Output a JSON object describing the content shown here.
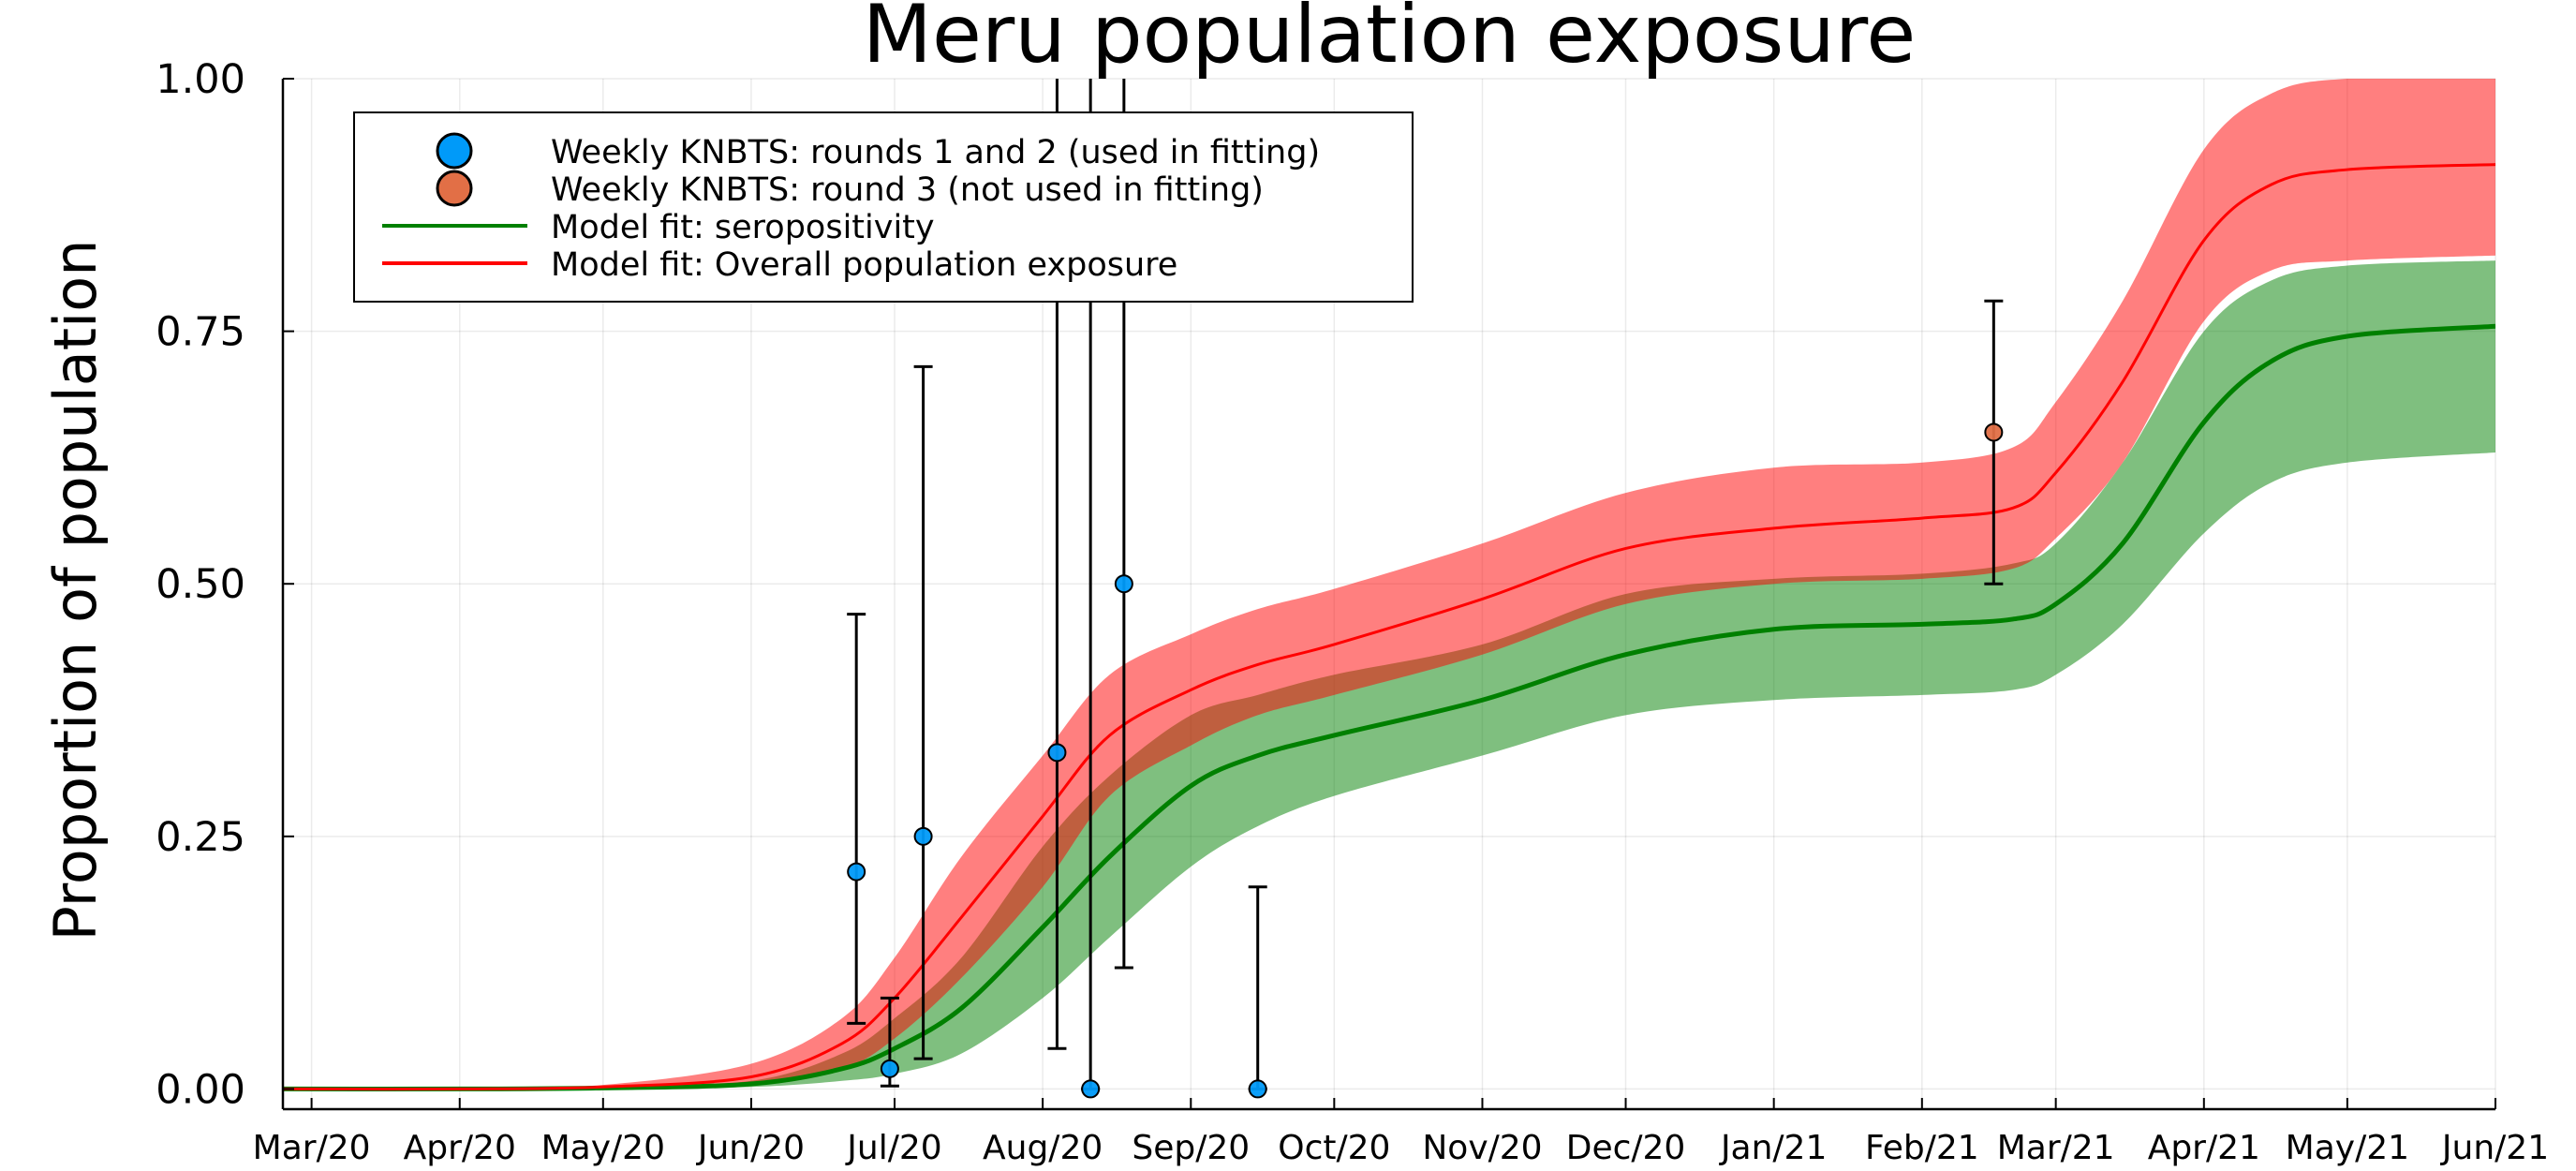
{
  "chart_data": {
    "type": "line",
    "title": "Meru population exposure",
    "xlabel": "",
    "ylabel": "Proportion of population",
    "xlim": [
      "2020-02-24",
      "2021-06-01"
    ],
    "ylim": [
      -0.02,
      1.0
    ],
    "x_ticks": [
      {
        "date": "2020-03-01",
        "label": "Mar/20"
      },
      {
        "date": "2020-04-01",
        "label": "Apr/20"
      },
      {
        "date": "2020-05-01",
        "label": "May/20"
      },
      {
        "date": "2020-06-01",
        "label": "Jun/20"
      },
      {
        "date": "2020-07-01",
        "label": "Jul/20"
      },
      {
        "date": "2020-08-01",
        "label": "Aug/20"
      },
      {
        "date": "2020-09-01",
        "label": "Sep/20"
      },
      {
        "date": "2020-10-01",
        "label": "Oct/20"
      },
      {
        "date": "2020-11-01",
        "label": "Nov/20"
      },
      {
        "date": "2020-12-01",
        "label": "Dec/20"
      },
      {
        "date": "2021-01-01",
        "label": "Jan/21"
      },
      {
        "date": "2021-02-01",
        "label": "Feb/21"
      },
      {
        "date": "2021-03-01",
        "label": "Mar/21"
      },
      {
        "date": "2021-04-01",
        "label": "Apr/21"
      },
      {
        "date": "2021-05-01",
        "label": "May/21"
      },
      {
        "date": "2021-06-01",
        "label": "Jun/21"
      }
    ],
    "y_ticks": [
      {
        "value": 0.0,
        "label": "0.00"
      },
      {
        "value": 0.25,
        "label": "0.25"
      },
      {
        "value": 0.5,
        "label": "0.50"
      },
      {
        "value": 0.75,
        "label": "0.75"
      },
      {
        "value": 1.0,
        "label": "1.00"
      }
    ],
    "grid": true,
    "legend_position": "top-left",
    "series": [
      {
        "name": "Model fit: seropositivity",
        "kind": "line_with_band",
        "color": "#008000",
        "band_color": "#008000",
        "band_opacity": 0.5,
        "points": [
          {
            "date": "2020-02-24",
            "y": 0.0,
            "low": 0.0,
            "high": 0.0
          },
          {
            "date": "2020-04-01",
            "y": 0.0,
            "low": 0.0,
            "high": 0.0
          },
          {
            "date": "2020-05-01",
            "y": 0.001,
            "low": 0.0,
            "high": 0.002
          },
          {
            "date": "2020-06-01",
            "y": 0.005,
            "low": 0.002,
            "high": 0.008
          },
          {
            "date": "2020-06-20",
            "y": 0.02,
            "low": 0.008,
            "high": 0.035
          },
          {
            "date": "2020-07-01",
            "y": 0.04,
            "low": 0.015,
            "high": 0.07
          },
          {
            "date": "2020-07-15",
            "y": 0.08,
            "low": 0.035,
            "high": 0.13
          },
          {
            "date": "2020-08-01",
            "y": 0.16,
            "low": 0.09,
            "high": 0.24
          },
          {
            "date": "2020-08-15",
            "y": 0.23,
            "low": 0.15,
            "high": 0.31
          },
          {
            "date": "2020-09-01",
            "y": 0.3,
            "low": 0.22,
            "high": 0.37
          },
          {
            "date": "2020-09-15",
            "y": 0.33,
            "low": 0.26,
            "high": 0.39
          },
          {
            "date": "2020-10-01",
            "y": 0.35,
            "low": 0.29,
            "high": 0.41
          },
          {
            "date": "2020-11-01",
            "y": 0.385,
            "low": 0.33,
            "high": 0.44
          },
          {
            "date": "2020-12-01",
            "y": 0.43,
            "low": 0.37,
            "high": 0.49
          },
          {
            "date": "2021-01-01",
            "y": 0.455,
            "low": 0.385,
            "high": 0.505
          },
          {
            "date": "2021-02-01",
            "y": 0.46,
            "low": 0.39,
            "high": 0.51
          },
          {
            "date": "2021-02-20",
            "y": 0.465,
            "low": 0.395,
            "high": 0.52
          },
          {
            "date": "2021-03-01",
            "y": 0.48,
            "low": 0.41,
            "high": 0.54
          },
          {
            "date": "2021-03-15",
            "y": 0.54,
            "low": 0.46,
            "high": 0.62
          },
          {
            "date": "2021-04-01",
            "y": 0.66,
            "low": 0.55,
            "high": 0.75
          },
          {
            "date": "2021-04-15",
            "y": 0.72,
            "low": 0.6,
            "high": 0.8
          },
          {
            "date": "2021-05-01",
            "y": 0.745,
            "low": 0.62,
            "high": 0.815
          },
          {
            "date": "2021-06-01",
            "y": 0.755,
            "low": 0.63,
            "high": 0.82
          }
        ]
      },
      {
        "name": "Model fit: Overall population exposure",
        "kind": "line_with_band",
        "color": "#ff0000",
        "band_color": "#ff0000",
        "band_opacity": 0.5,
        "points": [
          {
            "date": "2020-02-24",
            "y": 0.0,
            "low": 0.0,
            "high": 0.0
          },
          {
            "date": "2020-04-01",
            "y": 0.0,
            "low": 0.0,
            "high": 0.001
          },
          {
            "date": "2020-05-01",
            "y": 0.002,
            "low": 0.001,
            "high": 0.004
          },
          {
            "date": "2020-06-01",
            "y": 0.012,
            "low": 0.005,
            "high": 0.025
          },
          {
            "date": "2020-06-20",
            "y": 0.045,
            "low": 0.02,
            "high": 0.07
          },
          {
            "date": "2020-07-01",
            "y": 0.09,
            "low": 0.05,
            "high": 0.13
          },
          {
            "date": "2020-07-15",
            "y": 0.17,
            "low": 0.11,
            "high": 0.23
          },
          {
            "date": "2020-08-01",
            "y": 0.27,
            "low": 0.2,
            "high": 0.33
          },
          {
            "date": "2020-08-15",
            "y": 0.35,
            "low": 0.29,
            "high": 0.41
          },
          {
            "date": "2020-09-01",
            "y": 0.395,
            "low": 0.34,
            "high": 0.45
          },
          {
            "date": "2020-09-15",
            "y": 0.42,
            "low": 0.37,
            "high": 0.475
          },
          {
            "date": "2020-10-01",
            "y": 0.44,
            "low": 0.39,
            "high": 0.495
          },
          {
            "date": "2020-11-01",
            "y": 0.485,
            "low": 0.43,
            "high": 0.54
          },
          {
            "date": "2020-12-01",
            "y": 0.535,
            "low": 0.48,
            "high": 0.59
          },
          {
            "date": "2021-01-01",
            "y": 0.555,
            "low": 0.5,
            "high": 0.615
          },
          {
            "date": "2021-02-01",
            "y": 0.565,
            "low": 0.505,
            "high": 0.62
          },
          {
            "date": "2021-02-20",
            "y": 0.575,
            "low": 0.515,
            "high": 0.635
          },
          {
            "date": "2021-03-01",
            "y": 0.61,
            "low": 0.545,
            "high": 0.68
          },
          {
            "date": "2021-03-15",
            "y": 0.7,
            "low": 0.62,
            "high": 0.78
          },
          {
            "date": "2021-04-01",
            "y": 0.84,
            "low": 0.76,
            "high": 0.93
          },
          {
            "date": "2021-04-15",
            "y": 0.895,
            "low": 0.81,
            "high": 0.985
          },
          {
            "date": "2021-05-01",
            "y": 0.91,
            "low": 0.82,
            "high": 1.0
          },
          {
            "date": "2021-06-01",
            "y": 0.915,
            "low": 0.825,
            "high": 1.0
          }
        ]
      },
      {
        "name": "Weekly KNBTS: rounds 1 and 2 (used in fitting)",
        "kind": "scatter_with_errorbars",
        "color": "#009af9",
        "points": [
          {
            "date": "2020-06-23",
            "y": 0.215,
            "low": 0.065,
            "high": 0.47
          },
          {
            "date": "2020-06-30",
            "y": 0.02,
            "low": 0.003,
            "high": 0.09
          },
          {
            "date": "2020-07-07",
            "y": 0.25,
            "low": 0.03,
            "high": 0.715
          },
          {
            "date": "2020-08-04",
            "y": 0.333,
            "low": 0.04,
            "high": 1.0
          },
          {
            "date": "2020-08-11",
            "y": 0.0,
            "low": 0.0,
            "high": 1.0
          },
          {
            "date": "2020-08-18",
            "y": 0.5,
            "low": 0.12,
            "high": 1.0
          },
          {
            "date": "2020-09-15",
            "y": 0.0,
            "low": 0.0,
            "high": 0.2
          }
        ]
      },
      {
        "name": "Weekly KNBTS: round 3 (not used in fitting)",
        "kind": "scatter_with_errorbars",
        "color": "#e26f46",
        "points": [
          {
            "date": "2021-02-16",
            "y": 0.65,
            "low": 0.5,
            "high": 0.78
          }
        ]
      }
    ],
    "legend": [
      {
        "label": "Weekly KNBTS: rounds 1 and 2 (used in fitting)",
        "marker": "circle",
        "color": "#009af9"
      },
      {
        "label": "Weekly KNBTS: round 3 (not used in fitting)",
        "marker": "circle",
        "color": "#e26f46"
      },
      {
        "label": "Model fit: seropositivity",
        "marker": "line",
        "color": "#008000"
      },
      {
        "label": "Model fit: Overall population exposure",
        "marker": "line",
        "color": "#ff0000"
      }
    ]
  }
}
